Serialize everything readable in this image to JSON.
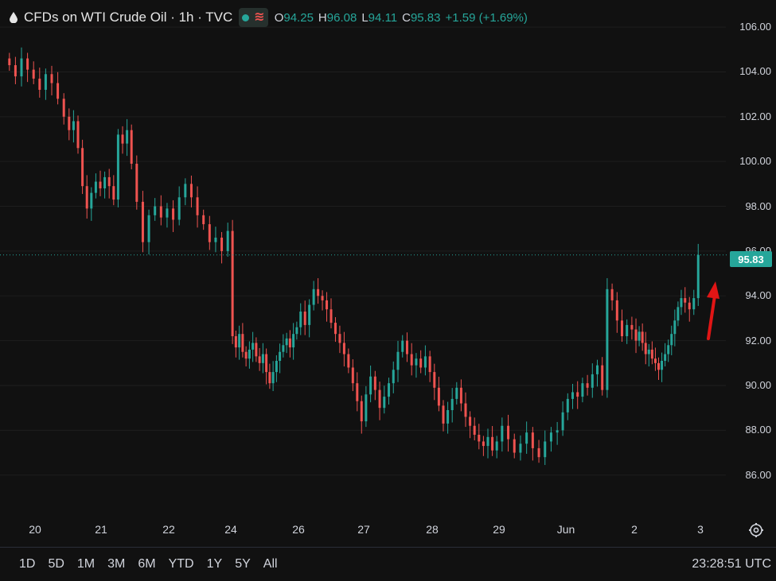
{
  "header": {
    "title": "CFDs on WTI Crude Oil · 1h · TVC",
    "ohlc": [
      {
        "label": "O",
        "value": "94.25"
      },
      {
        "label": "H",
        "value": "96.08"
      },
      {
        "label": "L",
        "value": "94.11"
      },
      {
        "label": "C",
        "value": "95.83"
      }
    ],
    "change": "+1.59 (+1.69%)"
  },
  "last_price_label": "95.83",
  "bottom_bar": {
    "ranges": [
      "1D",
      "5D",
      "1M",
      "3M",
      "6M",
      "YTD",
      "1Y",
      "5Y",
      "All"
    ],
    "clock": "23:28:51 UTC"
  },
  "colors": {
    "up": "#26a69a",
    "down": "#ef5350",
    "background": "#111111",
    "arrow": "#e01515"
  },
  "icons": [
    "drop-icon",
    "indicator-dot-icon",
    "wave-icon",
    "settings-icon",
    "up-arrow-annotation"
  ],
  "chart_data": {
    "type": "candlestick",
    "ylim": [
      84.5,
      106.5
    ],
    "y_ticks": [
      "106.00",
      "104.00",
      "102.00",
      "100.00",
      "98.00",
      "96.00",
      "94.00",
      "92.00",
      "90.00",
      "88.00",
      "86.00"
    ],
    "x_ticks": [
      "20",
      "21",
      "22",
      "24",
      "26",
      "27",
      "28",
      "29",
      "Jun",
      "2",
      "3"
    ],
    "last_price": 95.83,
    "grid": true,
    "series": [
      {
        "x": "20",
        "y": 104.3
      },
      {
        "x": "20",
        "y": 103.8
      },
      {
        "x": "20",
        "y": 104.6
      },
      {
        "x": "20",
        "y": 104.1
      },
      {
        "x": "20",
        "y": 103.7
      },
      {
        "x": "20",
        "y": 103.2
      },
      {
        "x": "20",
        "y": 103.9
      },
      {
        "x": "20",
        "y": 103.5
      },
      {
        "x": "20",
        "y": 102.8
      },
      {
        "x": "20",
        "y": 102.0
      },
      {
        "x": "21",
        "y": 101.4
      },
      {
        "x": "21",
        "y": 101.8
      },
      {
        "x": "21",
        "y": 100.6
      },
      {
        "x": "21",
        "y": 98.9
      },
      {
        "x": "21",
        "y": 97.9
      },
      {
        "x": "21",
        "y": 98.6
      },
      {
        "x": "21",
        "y": 99.1
      },
      {
        "x": "21",
        "y": 98.8
      },
      {
        "x": "21",
        "y": 99.3
      },
      {
        "x": "21",
        "y": 98.9
      },
      {
        "x": "21",
        "y": 98.3
      },
      {
        "x": "21",
        "y": 101.2
      },
      {
        "x": "21",
        "y": 100.8
      },
      {
        "x": "21",
        "y": 101.4
      },
      {
        "x": "21",
        "y": 99.9
      },
      {
        "x": "22",
        "y": 98.2
      },
      {
        "x": "22",
        "y": 96.4
      },
      {
        "x": "22",
        "y": 97.6
      },
      {
        "x": "22",
        "y": 98.0
      },
      {
        "x": "22",
        "y": 97.5
      },
      {
        "x": "22",
        "y": 97.9
      },
      {
        "x": "22",
        "y": 97.4
      },
      {
        "x": "22",
        "y": 98.4
      },
      {
        "x": "22",
        "y": 99.0
      },
      {
        "x": "22",
        "y": 98.4
      },
      {
        "x": "22",
        "y": 97.6
      },
      {
        "x": "22",
        "y": 97.2
      },
      {
        "x": "22",
        "y": 96.4
      },
      {
        "x": "22",
        "y": 96.6
      },
      {
        "x": "22",
        "y": 96.0
      },
      {
        "x": "22",
        "y": 96.9
      },
      {
        "x": "24",
        "y": 92.2
      },
      {
        "x": "24",
        "y": 91.7
      },
      {
        "x": "24",
        "y": 92.3
      },
      {
        "x": "24",
        "y": 91.5
      },
      {
        "x": "24",
        "y": 91.2
      },
      {
        "x": "24",
        "y": 91.6
      },
      {
        "x": "24",
        "y": 91.9
      },
      {
        "x": "24",
        "y": 91.3
      },
      {
        "x": "24",
        "y": 91.0
      },
      {
        "x": "24",
        "y": 91.4
      },
      {
        "x": "24",
        "y": 90.6
      },
      {
        "x": "24",
        "y": 90.1
      },
      {
        "x": "24",
        "y": 90.6
      },
      {
        "x": "24",
        "y": 91.1
      },
      {
        "x": "24",
        "y": 91.5
      },
      {
        "x": "24",
        "y": 91.8
      },
      {
        "x": "24",
        "y": 92.1
      },
      {
        "x": "24",
        "y": 91.7
      },
      {
        "x": "24",
        "y": 92.3
      },
      {
        "x": "24",
        "y": 92.6
      },
      {
        "x": "26",
        "y": 93.3
      },
      {
        "x": "26",
        "y": 92.7
      },
      {
        "x": "26",
        "y": 93.6
      },
      {
        "x": "26",
        "y": 94.3
      },
      {
        "x": "26",
        "y": 94.0
      },
      {
        "x": "26",
        "y": 93.8
      },
      {
        "x": "26",
        "y": 93.4
      },
      {
        "x": "26",
        "y": 92.8
      },
      {
        "x": "26",
        "y": 92.3
      },
      {
        "x": "26",
        "y": 91.9
      },
      {
        "x": "26",
        "y": 91.4
      },
      {
        "x": "26",
        "y": 90.8
      },
      {
        "x": "26",
        "y": 90.1
      },
      {
        "x": "26",
        "y": 89.3
      },
      {
        "x": "26",
        "y": 88.4
      },
      {
        "x": "27",
        "y": 89.6
      },
      {
        "x": "27",
        "y": 90.4
      },
      {
        "x": "27",
        "y": 89.8
      },
      {
        "x": "27",
        "y": 89.0
      },
      {
        "x": "27",
        "y": 89.5
      },
      {
        "x": "27",
        "y": 90.1
      },
      {
        "x": "27",
        "y": 90.7
      },
      {
        "x": "27",
        "y": 91.5
      },
      {
        "x": "27",
        "y": 92.0
      },
      {
        "x": "27",
        "y": 91.4
      },
      {
        "x": "27",
        "y": 90.9
      },
      {
        "x": "27",
        "y": 91.2
      },
      {
        "x": "27",
        "y": 90.8
      },
      {
        "x": "27",
        "y": 91.3
      },
      {
        "x": "27",
        "y": 90.6
      },
      {
        "x": "28",
        "y": 89.9
      },
      {
        "x": "28",
        "y": 89.1
      },
      {
        "x": "28",
        "y": 88.3
      },
      {
        "x": "28",
        "y": 88.9
      },
      {
        "x": "28",
        "y": 89.4
      },
      {
        "x": "28",
        "y": 89.9
      },
      {
        "x": "28",
        "y": 89.2
      },
      {
        "x": "28",
        "y": 88.6
      },
      {
        "x": "28",
        "y": 88.2
      },
      {
        "x": "28",
        "y": 87.8
      },
      {
        "x": "28",
        "y": 87.5
      },
      {
        "x": "28",
        "y": 87.3
      },
      {
        "x": "28",
        "y": 87.7
      },
      {
        "x": "28",
        "y": 87.1
      },
      {
        "x": "28",
        "y": 87.5
      },
      {
        "x": "29",
        "y": 88.2
      },
      {
        "x": "29",
        "y": 87.6
      },
      {
        "x": "29",
        "y": 87.0
      },
      {
        "x": "29",
        "y": 87.4
      },
      {
        "x": "29",
        "y": 87.9
      },
      {
        "x": "29",
        "y": 87.2
      },
      {
        "x": "29",
        "y": 86.8
      },
      {
        "x": "29",
        "y": 87.5
      },
      {
        "x": "29",
        "y": 87.9
      },
      {
        "x": "29",
        "y": 88.0
      },
      {
        "x": "Jun",
        "y": 88.8
      },
      {
        "x": "Jun",
        "y": 89.4
      },
      {
        "x": "Jun",
        "y": 89.7
      },
      {
        "x": "Jun",
        "y": 89.5
      },
      {
        "x": "Jun",
        "y": 90.1
      },
      {
        "x": "Jun",
        "y": 89.9
      },
      {
        "x": "Jun",
        "y": 90.5
      },
      {
        "x": "Jun",
        "y": 90.9
      },
      {
        "x": "Jun",
        "y": 89.8
      },
      {
        "x": "Jun",
        "y": 94.3
      },
      {
        "x": "Jun",
        "y": 93.8
      },
      {
        "x": "Jun",
        "y": 92.9
      },
      {
        "x": "Jun",
        "y": 92.2
      },
      {
        "x": "Jun",
        "y": 92.7
      },
      {
        "x": "Jun",
        "y": 92.5
      },
      {
        "x": "2",
        "y": 92.0
      },
      {
        "x": "2",
        "y": 92.4
      },
      {
        "x": "2",
        "y": 91.9
      },
      {
        "x": "2",
        "y": 91.4
      },
      {
        "x": "2",
        "y": 91.6
      },
      {
        "x": "2",
        "y": 91.2
      },
      {
        "x": "2",
        "y": 91.0
      },
      {
        "x": "2",
        "y": 90.7
      },
      {
        "x": "2",
        "y": 91.1
      },
      {
        "x": "2",
        "y": 91.4
      },
      {
        "x": "2",
        "y": 91.8
      },
      {
        "x": "2",
        "y": 92.3
      },
      {
        "x": "2",
        "y": 92.9
      },
      {
        "x": "2",
        "y": 93.5
      },
      {
        "x": "2",
        "y": 93.9
      },
      {
        "x": "3",
        "y": 93.7
      },
      {
        "x": "3",
        "y": 93.4
      },
      {
        "x": "3",
        "y": 93.9
      },
      {
        "x": "3",
        "y": 95.83
      }
    ]
  }
}
